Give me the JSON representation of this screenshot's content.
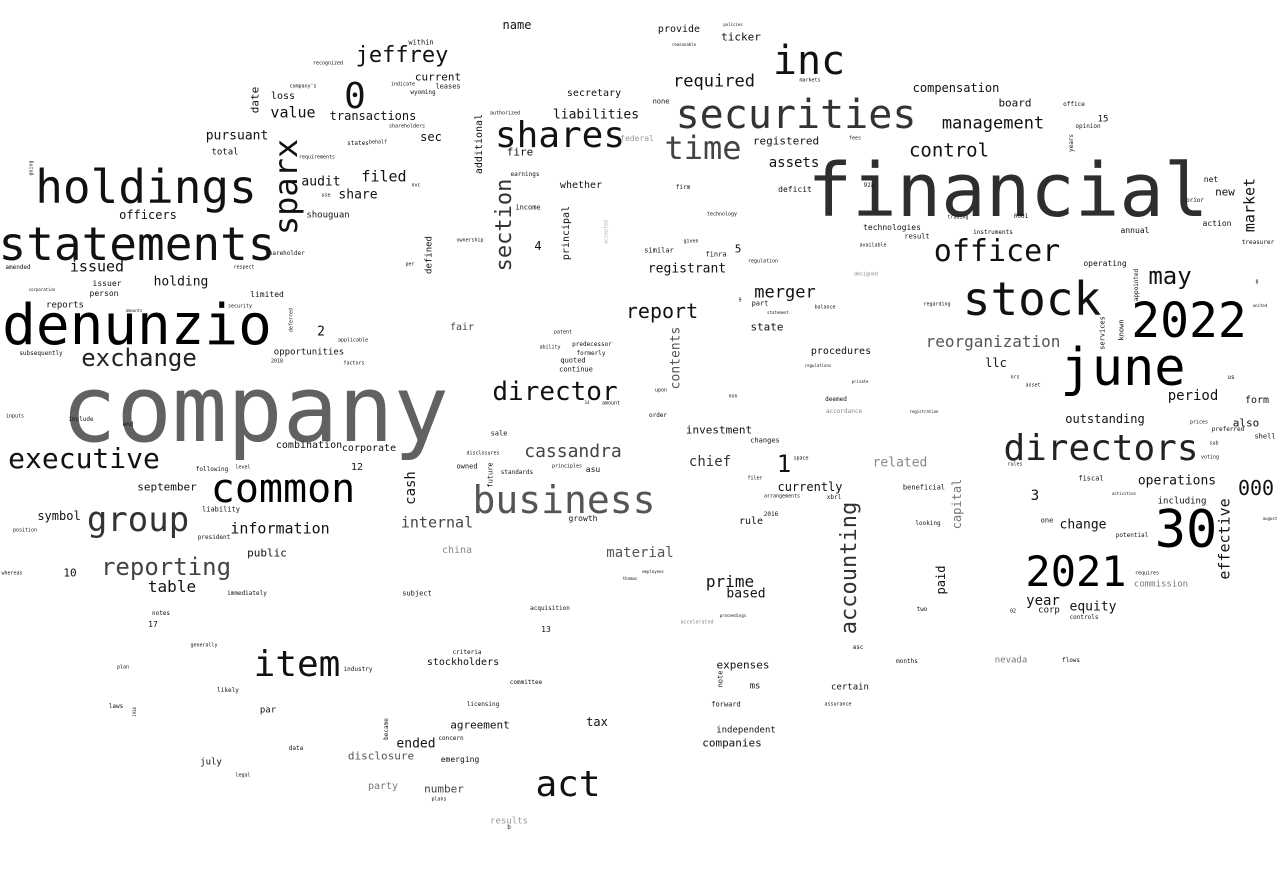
{
  "words": [
    {
      "text": "company",
      "color": "#616161"
    },
    {
      "text": "financial",
      "color": "#2e2e2e"
    },
    {
      "text": "denunzio",
      "color": "#000000"
    },
    {
      "text": "statements",
      "color": "#111111"
    },
    {
      "text": "holdings",
      "color": "#111111"
    },
    {
      "text": "securities",
      "color": "#333333"
    },
    {
      "text": "stock",
      "color": "#111111"
    },
    {
      "text": "june",
      "color": "#000000"
    },
    {
      "text": "2022",
      "color": "#000000"
    },
    {
      "text": "directors",
      "color": "#222222"
    },
    {
      "text": "30",
      "color": "#000000"
    },
    {
      "text": "2021",
      "color": "#000000"
    },
    {
      "text": "business",
      "color": "#555555"
    },
    {
      "text": "common",
      "color": "#000000"
    },
    {
      "text": "inc",
      "color": "#111111"
    },
    {
      "text": "shares",
      "color": "#111111"
    },
    {
      "text": "item",
      "color": "#111111"
    },
    {
      "text": "act",
      "color": "#111111"
    },
    {
      "text": "group",
      "color": "#333333"
    },
    {
      "text": "executive",
      "color": "#111111"
    },
    {
      "text": "sparx",
      "color": "#111111"
    },
    {
      "text": "officer",
      "color": "#111111"
    },
    {
      "text": "time",
      "color": "#444444"
    },
    {
      "text": "0",
      "color": "#111111"
    },
    {
      "text": "jeffrey",
      "color": "#111111"
    },
    {
      "text": "exchange",
      "color": "#222222"
    },
    {
      "text": "director",
      "color": "#111111"
    },
    {
      "text": "reporting",
      "color": "#444444"
    },
    {
      "text": "may",
      "color": "#111111"
    },
    {
      "text": "section",
      "color": "#333333"
    },
    {
      "text": "accounting",
      "color": "#333333"
    },
    {
      "text": "cassandra",
      "color": "#444444"
    },
    {
      "text": "report",
      "color": "#111111"
    },
    {
      "text": "management",
      "color": "#111111"
    },
    {
      "text": "control",
      "color": "#111111"
    },
    {
      "text": "merger",
      "color": "#111111"
    },
    {
      "text": "reorganization",
      "color": "#555555"
    },
    {
      "text": "required",
      "color": "#111111"
    },
    {
      "text": "1",
      "color": "#111111"
    },
    {
      "text": "period",
      "color": "#111111"
    },
    {
      "text": "000",
      "color": "#111111"
    },
    {
      "text": "effective",
      "color": "#111111"
    },
    {
      "text": "prime",
      "color": "#111111"
    },
    {
      "text": "table",
      "color": "#111111"
    },
    {
      "text": "information",
      "color": "#111111"
    },
    {
      "text": "value",
      "color": "#111111"
    },
    {
      "text": "issued",
      "color": "#111111"
    },
    {
      "text": "filed",
      "color": "#111111"
    },
    {
      "text": "holding",
      "color": "#111111"
    },
    {
      "text": "market",
      "color": "#111111"
    },
    {
      "text": "internal",
      "color": "#444444"
    },
    {
      "text": "material",
      "color": "#555555"
    },
    {
      "text": "related",
      "color": "#888888"
    },
    {
      "text": "chief",
      "color": "#333333"
    },
    {
      "text": "cash",
      "color": "#111111"
    },
    {
      "text": "contents",
      "color": "#555555"
    },
    {
      "text": "registrant",
      "color": "#111111"
    },
    {
      "text": "assets",
      "color": "#111111"
    },
    {
      "text": "compensation",
      "color": "#111111"
    },
    {
      "text": "liabilities",
      "color": "#111111"
    },
    {
      "text": "transactions",
      "color": "#111111"
    },
    {
      "text": "pursuant",
      "color": "#111111"
    },
    {
      "text": "audit",
      "color": "#111111"
    },
    {
      "text": "share",
      "color": "#111111"
    },
    {
      "text": "officers",
      "color": "#111111"
    },
    {
      "text": "year",
      "color": "#111111"
    },
    {
      "text": "equity",
      "color": "#111111"
    },
    {
      "text": "operations",
      "color": "#111111"
    },
    {
      "text": "change",
      "color": "#111111"
    },
    {
      "text": "outstanding",
      "color": "#111111"
    },
    {
      "text": "investment",
      "color": "#111111"
    },
    {
      "text": "currently",
      "color": "#111111"
    },
    {
      "text": "based",
      "color": "#111111"
    },
    {
      "text": "capital",
      "color": "#777777"
    },
    {
      "text": "paid",
      "color": "#111111"
    },
    {
      "text": "expenses",
      "color": "#111111"
    },
    {
      "text": "ended",
      "color": "#111111"
    },
    {
      "text": "tax",
      "color": "#111111"
    },
    {
      "text": "agreement",
      "color": "#111111"
    },
    {
      "text": "companies",
      "color": "#111111"
    },
    {
      "text": "symbol",
      "color": "#111111"
    },
    {
      "text": "september",
      "color": "#111111"
    },
    {
      "text": "public",
      "color": "#111111"
    },
    {
      "text": "name",
      "color": "#111111"
    },
    {
      "text": "ticker",
      "color": "#111111"
    },
    {
      "text": "provide",
      "color": "#111111"
    },
    {
      "text": "registered",
      "color": "#111111"
    },
    {
      "text": "board",
      "color": "#111111"
    },
    {
      "text": "llc",
      "color": "#111111"
    },
    {
      "text": "procedures",
      "color": "#111111"
    },
    {
      "text": "state",
      "color": "#111111"
    },
    {
      "text": "fair",
      "color": "#444444"
    },
    {
      "text": "sec",
      "color": "#111111"
    },
    {
      "text": "current",
      "color": "#111111"
    },
    {
      "text": "secretary",
      "color": "#111111"
    },
    {
      "text": "fire",
      "color": "#111111"
    },
    {
      "text": "whether",
      "color": "#111111"
    },
    {
      "text": "stockholders",
      "color": "#111111"
    },
    {
      "text": "disclosure",
      "color": "#555555"
    },
    {
      "text": "number",
      "color": "#444444"
    },
    {
      "text": "party",
      "color": "#777777"
    },
    {
      "text": "china",
      "color": "#888888"
    },
    {
      "text": "rule",
      "color": "#111111"
    },
    {
      "text": "also",
      "color": "#111111"
    },
    {
      "text": "new",
      "color": "#111111"
    },
    {
      "text": "form",
      "color": "#111111"
    },
    {
      "text": "nevada",
      "color": "#777777"
    },
    {
      "text": "commission",
      "color": "#777777"
    },
    {
      "text": "certain",
      "color": "#111111"
    },
    {
      "text": "ms",
      "color": "#111111"
    },
    {
      "text": "independent",
      "color": "#111111"
    },
    {
      "text": "loss",
      "color": "#111111"
    },
    {
      "text": "date",
      "color": "#111111"
    },
    {
      "text": "combination",
      "color": "#111111"
    },
    {
      "text": "corporate",
      "color": "#111111"
    },
    {
      "text": "opportunities",
      "color": "#111111"
    },
    {
      "text": "shouguan",
      "color": "#111111"
    },
    {
      "text": "additional",
      "color": "#111111"
    },
    {
      "text": "principal",
      "color": "#111111"
    },
    {
      "text": "defined",
      "color": "#111111"
    },
    {
      "text": "limited",
      "color": "#111111"
    },
    {
      "text": "including",
      "color": "#111111"
    },
    {
      "text": "corp",
      "color": "#111111"
    },
    {
      "text": "emerging",
      "color": "#111111"
    },
    {
      "text": "3",
      "color": "#111111"
    },
    {
      "text": "4",
      "color": "#111111"
    },
    {
      "text": "5",
      "color": "#111111"
    },
    {
      "text": "2",
      "color": "#111111"
    },
    {
      "text": "10",
      "color": "#111111"
    },
    {
      "text": "12",
      "color": "#111111"
    },
    {
      "text": "13",
      "color": "#111111"
    },
    {
      "text": "17",
      "color": "#111111"
    },
    {
      "text": "15",
      "color": "#111111"
    },
    {
      "text": "july",
      "color": "#111111"
    },
    {
      "text": "par",
      "color": "#111111"
    },
    {
      "text": "results",
      "color": "#999999"
    },
    {
      "text": "total",
      "color": "#111111"
    },
    {
      "text": "reports",
      "color": "#111111"
    },
    {
      "text": "issuer",
      "color": "#111111"
    },
    {
      "text": "person",
      "color": "#111111"
    },
    {
      "text": "within",
      "color": "#111111"
    },
    {
      "text": "wyoming",
      "color": "#111111"
    },
    {
      "text": "leases",
      "color": "#111111"
    },
    {
      "text": "income",
      "color": "#111111"
    },
    {
      "text": "earnings",
      "color": "#111111"
    },
    {
      "text": "federal",
      "color": "#999999"
    },
    {
      "text": "none",
      "color": "#111111"
    },
    {
      "text": "firm",
      "color": "#111111"
    },
    {
      "text": "deficit",
      "color": "#111111"
    },
    {
      "text": "technologies",
      "color": "#111111"
    },
    {
      "text": "instruments",
      "color": "#111111"
    },
    {
      "text": "result",
      "color": "#111111"
    },
    {
      "text": "annual",
      "color": "#111111"
    },
    {
      "text": "operating",
      "color": "#111111"
    },
    {
      "text": "action",
      "color": "#111111"
    },
    {
      "text": "prior",
      "color": "#111111"
    },
    {
      "text": "net",
      "color": "#111111"
    },
    {
      "text": "office",
      "color": "#111111"
    },
    {
      "text": "opinion",
      "color": "#111111"
    },
    {
      "text": "years",
      "color": "#111111"
    },
    {
      "text": "treasurer",
      "color": "#111111"
    },
    {
      "text": "services",
      "color": "#111111"
    },
    {
      "text": "known",
      "color": "#111111"
    },
    {
      "text": "appointed",
      "color": "#111111"
    },
    {
      "text": "shell",
      "color": "#111111"
    },
    {
      "text": "fiscal",
      "color": "#111111"
    },
    {
      "text": "one",
      "color": "#111111"
    },
    {
      "text": "potential",
      "color": "#111111"
    },
    {
      "text": "beneficial",
      "color": "#111111"
    },
    {
      "text": "looking",
      "color": "#111111"
    },
    {
      "text": "two",
      "color": "#111111"
    },
    {
      "text": "controls",
      "color": "#111111"
    },
    {
      "text": "flows",
      "color": "#111111"
    },
    {
      "text": "months",
      "color": "#111111"
    },
    {
      "text": "assurance",
      "color": "#111111"
    },
    {
      "text": "forward",
      "color": "#111111"
    },
    {
      "text": "note",
      "color": "#111111"
    },
    {
      "text": "asc",
      "color": "#111111"
    },
    {
      "text": "deemed",
      "color": "#111111"
    },
    {
      "text": "accordance",
      "color": "#888888"
    },
    {
      "text": "space",
      "color": "#111111"
    },
    {
      "text": "xbrl",
      "color": "#111111"
    },
    {
      "text": "arrangements",
      "color": "#111111"
    },
    {
      "text": "changes",
      "color": "#111111"
    },
    {
      "text": "finra",
      "color": "#111111"
    },
    {
      "text": "regulation",
      "color": "#111111"
    },
    {
      "text": "similar",
      "color": "#111111"
    },
    {
      "text": "given",
      "color": "#111111"
    },
    {
      "text": "sale",
      "color": "#111111"
    },
    {
      "text": "owned",
      "color": "#111111"
    },
    {
      "text": "future",
      "color": "#111111"
    },
    {
      "text": "standards",
      "color": "#111111"
    },
    {
      "text": "growth",
      "color": "#111111"
    },
    {
      "text": "asu",
      "color": "#111111"
    },
    {
      "text": "principles",
      "color": "#111111"
    },
    {
      "text": "continue",
      "color": "#111111"
    },
    {
      "text": "quoted",
      "color": "#111111"
    },
    {
      "text": "formerly",
      "color": "#111111"
    },
    {
      "text": "predecessor",
      "color": "#111111"
    },
    {
      "text": "patent",
      "color": "#111111"
    },
    {
      "text": "ability",
      "color": "#111111"
    },
    {
      "text": "upon",
      "color": "#111111"
    },
    {
      "text": "order",
      "color": "#111111"
    },
    {
      "text": "amount",
      "color": "#111111"
    },
    {
      "text": "subject",
      "color": "#111111"
    },
    {
      "text": "acquisition",
      "color": "#111111"
    },
    {
      "text": "criteria",
      "color": "#111111"
    },
    {
      "text": "committee",
      "color": "#111111"
    },
    {
      "text": "licensing",
      "color": "#111111"
    },
    {
      "text": "concern",
      "color": "#111111"
    },
    {
      "text": "became",
      "color": "#111111"
    },
    {
      "text": "industry",
      "color": "#111111"
    },
    {
      "text": "notes",
      "color": "#111111"
    },
    {
      "text": "generally",
      "color": "#111111"
    },
    {
      "text": "plan",
      "color": "#111111"
    },
    {
      "text": "likely",
      "color": "#111111"
    },
    {
      "text": "laws",
      "color": "#111111"
    },
    {
      "text": "data",
      "color": "#111111"
    },
    {
      "text": "legal",
      "color": "#111111"
    },
    {
      "text": "immediately",
      "color": "#111111"
    },
    {
      "text": "president",
      "color": "#111111"
    },
    {
      "text": "liability",
      "color": "#111111"
    },
    {
      "text": "following",
      "color": "#111111"
    },
    {
      "text": "level",
      "color": "#111111"
    },
    {
      "text": "include",
      "color": "#111111"
    },
    {
      "text": "end",
      "color": "#111111"
    },
    {
      "text": "inputs",
      "color": "#111111"
    },
    {
      "text": "position",
      "color": "#111111"
    },
    {
      "text": "whereas",
      "color": "#111111"
    },
    {
      "text": "subsequently",
      "color": "#111111"
    },
    {
      "text": "amended",
      "color": "#111111"
    },
    {
      "text": "going",
      "color": "#111111"
    },
    {
      "text": "requirements",
      "color": "#111111"
    },
    {
      "text": "states",
      "color": "#111111"
    },
    {
      "text": "shareholders",
      "color": "#111111"
    },
    {
      "text": "authorized",
      "color": "#111111"
    },
    {
      "text": "recognized",
      "color": "#111111"
    },
    {
      "text": "company's",
      "color": "#111111"
    },
    {
      "text": "indicate",
      "color": "#111111"
    },
    {
      "text": "shareholder",
      "color": "#111111"
    },
    {
      "text": "respect",
      "color": "#111111"
    },
    {
      "text": "corporation",
      "color": "#111111"
    },
    {
      "text": "per",
      "color": "#111111"
    },
    {
      "text": "ownership",
      "color": "#111111"
    },
    {
      "text": "nvc",
      "color": "#111111"
    },
    {
      "text": "use",
      "color": "#111111"
    },
    {
      "text": "behalf",
      "color": "#111111"
    },
    {
      "text": "security",
      "color": "#111111"
    },
    {
      "text": "amounts",
      "color": "#111111"
    },
    {
      "text": "applicable",
      "color": "#111111"
    },
    {
      "text": "factors",
      "color": "#111111"
    },
    {
      "text": "deferred",
      "color": "#111111"
    },
    {
      "text": "technology",
      "color": "#111111"
    },
    {
      "text": "trading",
      "color": "#111111"
    },
    {
      "text": "available",
      "color": "#111111"
    },
    {
      "text": "designed",
      "color": "#888888"
    },
    {
      "text": "regarding",
      "color": "#111111"
    },
    {
      "text": "statement",
      "color": "#111111"
    },
    {
      "text": "part",
      "color": "#111111"
    },
    {
      "text": "balance",
      "color": "#111111"
    },
    {
      "text": "regulations",
      "color": "#111111"
    },
    {
      "text": "private",
      "color": "#111111"
    },
    {
      "text": "registration",
      "color": "#111111"
    },
    {
      "text": "asset",
      "color": "#111111"
    },
    {
      "text": "nrs",
      "color": "#111111"
    },
    {
      "text": "us",
      "color": "#111111"
    },
    {
      "text": "prices",
      "color": "#111111"
    },
    {
      "text": "preferred",
      "color": "#111111"
    },
    {
      "text": "voting",
      "color": "#111111"
    },
    {
      "text": "sub",
      "color": "#111111"
    },
    {
      "text": "rules",
      "color": "#111111"
    },
    {
      "text": "requires",
      "color": "#111111"
    },
    {
      "text": "activities",
      "color": "#111111"
    },
    {
      "text": "united",
      "color": "#111111"
    },
    {
      "text": "august",
      "color": "#111111"
    },
    {
      "text": "markets",
      "color": "#111111"
    },
    {
      "text": "policies",
      "color": "#111111"
    },
    {
      "text": "reasonable",
      "color": "#111111"
    },
    {
      "text": "fees",
      "color": "#111111"
    },
    {
      "text": "accepted",
      "color": "#aaaaaa"
    },
    {
      "text": "accelerated",
      "color": "#888888"
    },
    {
      "text": "proceedings",
      "color": "#111111"
    },
    {
      "text": "filer",
      "color": "#111111"
    },
    {
      "text": "employees",
      "color": "#111111"
    },
    {
      "text": "thomas",
      "color": "#111111"
    },
    {
      "text": "non",
      "color": "#111111"
    },
    {
      "text": "disclosures",
      "color": "#111111"
    },
    {
      "text": "plans",
      "color": "#111111"
    },
    {
      "text": "b",
      "color": "#111111"
    },
    {
      "text": "2016",
      "color": "#111111"
    },
    {
      "text": "2018",
      "color": "#111111"
    },
    {
      "text": "1934",
      "color": "#111111"
    },
    {
      "text": "8",
      "color": "#111111"
    },
    {
      "text": "9",
      "color": "#111111"
    },
    {
      "text": "92a",
      "color": "#111111"
    },
    {
      "text": "0001",
      "color": "#111111"
    },
    {
      "text": "14",
      "color": "#111111"
    },
    {
      "text": "02",
      "color": "#111111"
    }
  ]
}
